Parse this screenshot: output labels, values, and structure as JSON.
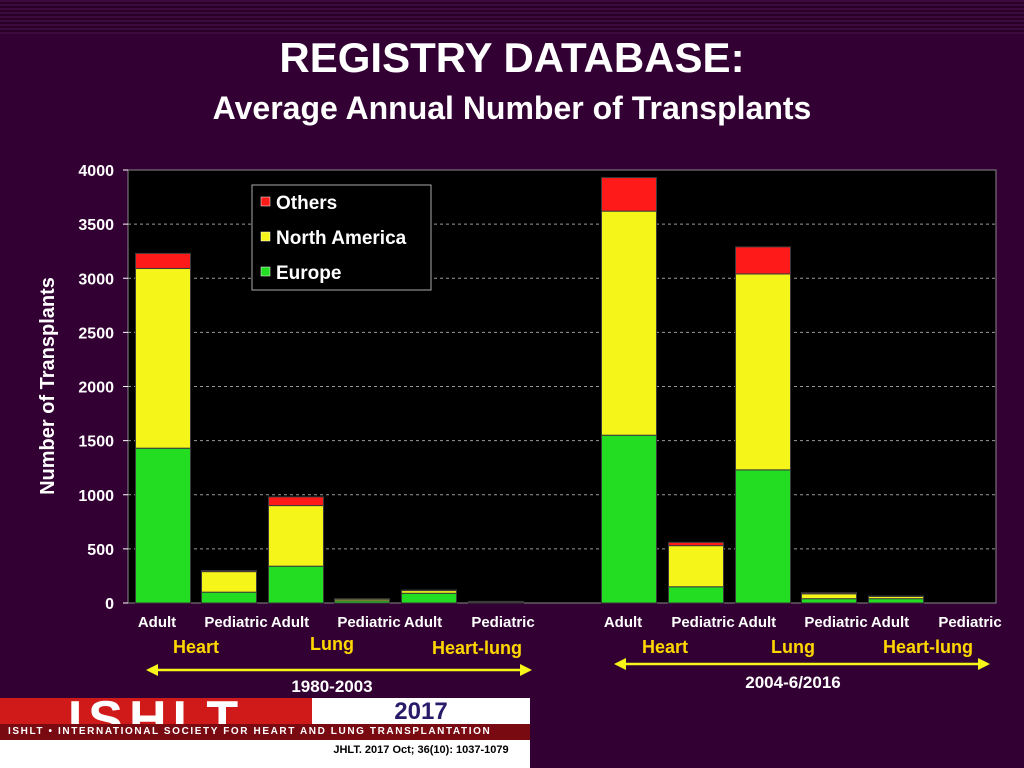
{
  "title": "REGISTRY DATABASE:",
  "subtitle": "Average Annual Number of Transplants",
  "colors": {
    "others": "#ff1a1a",
    "north_america": "#f5f51a",
    "europe": "#22dd22",
    "background": "#330033",
    "plot_bg": "#000000"
  },
  "chart_data": {
    "type": "bar",
    "stacked": true,
    "ylabel": "Number of Transplants",
    "ylim": [
      0,
      4000
    ],
    "yticks": [
      0,
      500,
      1000,
      1500,
      2000,
      2500,
      3000,
      3500,
      4000
    ],
    "grid": true,
    "legend_position": "top-center",
    "categories": [
      "Adult",
      "Pediatric",
      "Adult",
      "Pediatric",
      "Adult",
      "Pediatric",
      "Adult",
      "Pediatric",
      "Adult",
      "Pediatric",
      "Adult",
      "Pediatric"
    ],
    "series": [
      {
        "name": "Europe",
        "values": [
          1430,
          100,
          340,
          20,
          90,
          10,
          1550,
          150,
          1230,
          40,
          40,
          0
        ]
      },
      {
        "name": "North America",
        "values": [
          1660,
          190,
          560,
          15,
          25,
          5,
          2070,
          380,
          1810,
          45,
          20,
          0
        ]
      },
      {
        "name": "Others",
        "values": [
          140,
          10,
          80,
          5,
          5,
          0,
          310,
          30,
          250,
          10,
          5,
          0
        ]
      }
    ],
    "legend_order": [
      "Others",
      "North America",
      "Europe"
    ],
    "organ_groups": [
      {
        "label": "Heart"
      },
      {
        "label": "Lung"
      },
      {
        "label": "Heart-lung"
      },
      {
        "label": "Heart"
      },
      {
        "label": "Lung"
      },
      {
        "label": "Heart-lung"
      }
    ],
    "periods": [
      {
        "label": "1980-2003"
      },
      {
        "label": "2004-6/2016"
      }
    ]
  },
  "footer": {
    "logo_text": "ISHLT",
    "tagline": "ISHLT • INTERNATIONAL SOCIETY FOR HEART AND LUNG TRANSPLANTATION",
    "year": "2017",
    "citation": "JHLT. 2017 Oct; 36(10): 1037-1079"
  }
}
